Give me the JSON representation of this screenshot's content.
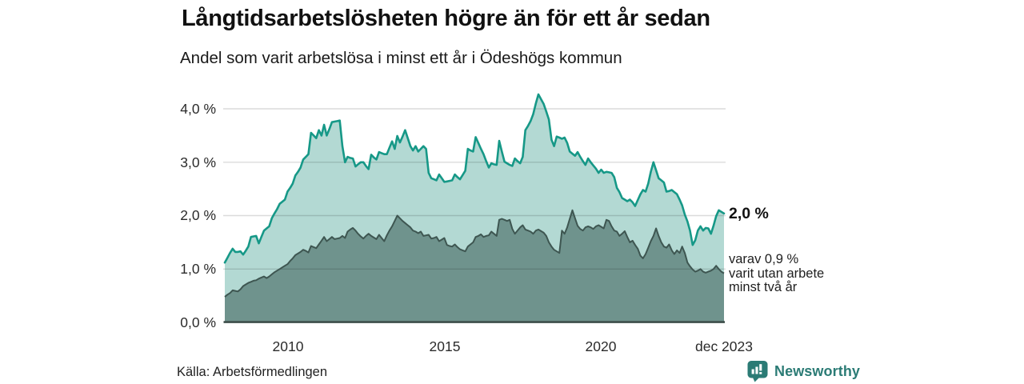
{
  "header": {
    "title": "Långtidsarbetslösheten högre än för ett år sedan",
    "subtitle": "Andel som varit arbetslösa i minst ett år i Ödeshögs kommun"
  },
  "chart_data": {
    "type": "area",
    "title": "Långtidsarbetslösheten högre än för ett år sedan",
    "subtitle": "Andel som varit arbetslösa i minst ett år i Ödeshögs kommun",
    "x_unit": "month",
    "x_range": [
      "2008-01",
      "2023-12"
    ],
    "x_tick_labels": [
      "2010",
      "2015",
      "2020",
      "dec 2023"
    ],
    "y_tick_labels": [
      "4,0 %",
      "3,0 %",
      "2,0 %",
      "1,0 %",
      "0,0 %"
    ],
    "y_tick_values": [
      4,
      3,
      2,
      1,
      0
    ],
    "ylim": [
      0,
      4.3
    ],
    "grid": true,
    "legend_position": "none",
    "series": [
      {
        "name": "arbetslösa minst ett år",
        "color": "#169887",
        "fill": "#b3d9d3",
        "last_value": 2.0,
        "last_value_label": "2,0 %",
        "values": [
          1.12,
          1.21,
          1.3,
          1.38,
          1.32,
          1.32,
          1.33,
          1.27,
          1.34,
          1.42,
          1.6,
          1.61,
          1.62,
          1.48,
          1.6,
          1.72,
          1.76,
          1.8,
          1.95,
          2.04,
          2.12,
          2.22,
          2.26,
          2.3,
          2.45,
          2.52,
          2.6,
          2.75,
          2.82,
          2.9,
          3.05,
          3.1,
          3.15,
          3.55,
          3.5,
          3.45,
          3.6,
          3.5,
          3.7,
          3.5,
          3.62,
          3.75,
          3.76,
          3.77,
          3.78,
          3.3,
          3.0,
          3.1,
          3.08,
          3.07,
          2.92,
          2.96,
          3.0,
          3.0,
          2.93,
          2.87,
          3.14,
          3.09,
          3.05,
          3.19,
          3.17,
          3.15,
          3.15,
          3.27,
          3.39,
          3.25,
          3.49,
          3.37,
          3.48,
          3.6,
          3.45,
          3.3,
          3.22,
          3.3,
          3.2,
          3.25,
          3.3,
          3.25,
          2.8,
          2.7,
          2.68,
          2.66,
          2.77,
          2.7,
          2.63,
          2.64,
          2.65,
          2.66,
          2.77,
          2.72,
          2.68,
          2.76,
          2.84,
          3.25,
          3.22,
          3.2,
          3.47,
          3.36,
          3.25,
          3.15,
          3.02,
          2.9,
          2.98,
          2.96,
          2.95,
          3.4,
          3.2,
          3.01,
          2.98,
          2.95,
          2.93,
          3.07,
          3.02,
          2.98,
          3.1,
          3.6,
          3.68,
          3.77,
          3.9,
          4.1,
          4.27,
          4.18,
          4.09,
          3.95,
          3.8,
          3.42,
          3.3,
          3.48,
          3.46,
          3.44,
          3.46,
          3.36,
          3.2,
          3.16,
          3.12,
          3.19,
          3.1,
          3.02,
          2.95,
          3.07,
          3.0,
          2.94,
          2.88,
          2.8,
          2.86,
          2.8,
          2.82,
          2.81,
          2.8,
          2.72,
          2.52,
          2.44,
          2.33,
          2.3,
          2.27,
          2.3,
          2.25,
          2.18,
          2.29,
          2.4,
          2.48,
          2.45,
          2.6,
          2.82,
          3.0,
          2.85,
          2.7,
          2.66,
          2.62,
          2.45,
          2.46,
          2.48,
          2.44,
          2.4,
          2.3,
          2.19,
          2.02,
          1.89,
          1.72,
          1.45,
          1.54,
          1.72,
          1.8,
          1.72,
          1.77,
          1.76,
          1.66,
          1.81,
          1.99,
          2.1,
          2.07,
          2.04
        ]
      },
      {
        "name": "varav utan arbete minst två år",
        "color": "#3e5651",
        "fill": "#6f938d",
        "last_value": 0.9,
        "last_value_label": "0,9 %",
        "values": [
          0.48,
          0.52,
          0.55,
          0.6,
          0.59,
          0.58,
          0.62,
          0.68,
          0.71,
          0.74,
          0.76,
          0.78,
          0.79,
          0.82,
          0.84,
          0.86,
          0.83,
          0.86,
          0.9,
          0.94,
          0.97,
          1.0,
          1.03,
          1.06,
          1.09,
          1.15,
          1.2,
          1.26,
          1.29,
          1.32,
          1.36,
          1.34,
          1.31,
          1.43,
          1.41,
          1.39,
          1.46,
          1.53,
          1.6,
          1.52,
          1.56,
          1.6,
          1.56,
          1.57,
          1.58,
          1.62,
          1.58,
          1.7,
          1.74,
          1.77,
          1.72,
          1.66,
          1.61,
          1.57,
          1.62,
          1.66,
          1.62,
          1.59,
          1.56,
          1.64,
          1.58,
          1.52,
          1.63,
          1.72,
          1.8,
          1.9,
          2.0,
          1.95,
          1.9,
          1.86,
          1.82,
          1.78,
          1.72,
          1.7,
          1.67,
          1.7,
          1.62,
          1.63,
          1.64,
          1.57,
          1.58,
          1.6,
          1.52,
          1.55,
          1.58,
          1.45,
          1.43,
          1.42,
          1.46,
          1.41,
          1.37,
          1.35,
          1.33,
          1.42,
          1.46,
          1.5,
          1.6,
          1.62,
          1.65,
          1.6,
          1.62,
          1.63,
          1.7,
          1.66,
          1.62,
          1.92,
          1.94,
          1.92,
          1.9,
          1.92,
          1.75,
          1.66,
          1.72,
          1.78,
          1.82,
          1.74,
          1.72,
          1.7,
          1.66,
          1.72,
          1.74,
          1.71,
          1.68,
          1.62,
          1.5,
          1.42,
          1.36,
          1.33,
          1.3,
          1.72,
          1.66,
          1.78,
          1.94,
          2.1,
          1.95,
          1.81,
          1.75,
          1.72,
          1.78,
          1.8,
          1.78,
          1.75,
          1.8,
          1.82,
          1.79,
          1.76,
          1.92,
          1.9,
          1.8,
          1.72,
          1.7,
          1.62,
          1.66,
          1.71,
          1.6,
          1.5,
          1.53,
          1.45,
          1.38,
          1.25,
          1.2,
          1.28,
          1.4,
          1.52,
          1.62,
          1.76,
          1.62,
          1.5,
          1.42,
          1.4,
          1.46,
          1.35,
          1.28,
          1.35,
          1.3,
          1.42,
          1.3,
          1.12,
          1.05,
          0.99,
          0.95,
          0.97,
          1.0,
          0.95,
          0.93,
          0.95,
          0.97,
          1.0,
          1.06,
          1.0,
          0.95,
          0.92
        ]
      }
    ]
  },
  "annotations": {
    "latest_total": "2,0 %",
    "latest_two_years_lines": [
      "varav 0,9 %",
      "varit utan arbete",
      "minst två år"
    ]
  },
  "footer": {
    "source": "Källa: Arbetsförmedlingen",
    "brand": "Newsworthy"
  },
  "colors": {
    "line_1yr": "#169887",
    "fill_1yr": "#b3d9d3",
    "line_2yr": "#3e5651",
    "fill_2yr": "#6f938d",
    "axis": "#3d4e4a",
    "grid": "#dbdbdb",
    "brand": "#2b7b75",
    "text": "#111111"
  }
}
